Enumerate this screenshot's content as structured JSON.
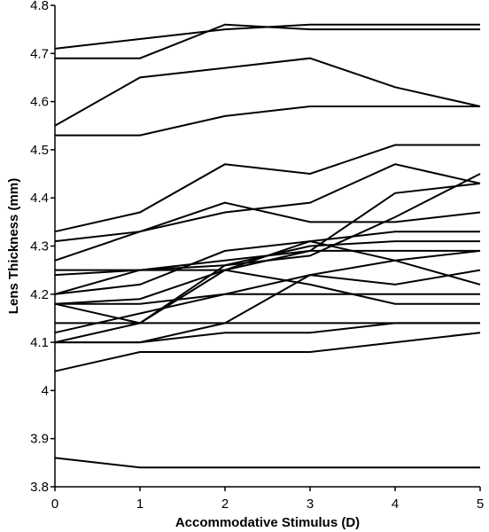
{
  "chart_data": {
    "type": "line",
    "xlabel": "Accommodative Stimulus (D)",
    "ylabel": "Lens Thickness (mm)",
    "x": [
      0,
      1,
      2,
      3,
      4,
      5
    ],
    "xlim": [
      0,
      5
    ],
    "ylim": [
      3.8,
      4.8
    ],
    "xticks": [
      "0",
      "1",
      "2",
      "3",
      "4",
      "5"
    ],
    "yticks": [
      "3.8",
      "3.9",
      "4",
      "4.1",
      "4.2",
      "4.3",
      "4.4",
      "4.5",
      "4.6",
      "4.7",
      "4.8"
    ],
    "grid": false,
    "legend": "none",
    "line_color": "#000000",
    "series": [
      {
        "values": [
          4.71,
          4.73,
          4.75,
          4.76,
          4.76,
          4.76
        ]
      },
      {
        "values": [
          4.69,
          4.69,
          4.76,
          4.75,
          4.75,
          4.75
        ]
      },
      {
        "values": [
          4.55,
          4.65,
          4.67,
          4.69,
          4.63,
          4.59
        ]
      },
      {
        "values": [
          4.53,
          4.53,
          4.57,
          4.59,
          4.59,
          4.59
        ]
      },
      {
        "values": [
          4.33,
          4.37,
          4.47,
          4.45,
          4.51,
          4.51
        ]
      },
      {
        "values": [
          4.31,
          4.33,
          4.39,
          4.35,
          4.35,
          4.37
        ]
      },
      {
        "values": [
          4.27,
          4.33,
          4.37,
          4.39,
          4.47,
          4.43
        ]
      },
      {
        "values": [
          4.24,
          4.25,
          4.27,
          4.29,
          4.41,
          4.43
        ]
      },
      {
        "values": [
          4.25,
          4.25,
          4.25,
          4.31,
          4.33,
          4.33
        ]
      },
      {
        "values": [
          4.2,
          4.25,
          4.26,
          4.3,
          4.31,
          4.31
        ]
      },
      {
        "values": [
          4.18,
          4.19,
          4.25,
          4.29,
          4.29,
          4.29
        ]
      },
      {
        "values": [
          4.2,
          4.22,
          4.29,
          4.31,
          4.27,
          4.22
        ]
      },
      {
        "values": [
          4.18,
          4.14,
          4.26,
          4.28,
          4.36,
          4.45
        ]
      },
      {
        "values": [
          4.12,
          4.16,
          4.2,
          4.24,
          4.27,
          4.29
        ]
      },
      {
        "values": [
          4.1,
          4.1,
          4.14,
          4.24,
          4.22,
          4.25
        ]
      },
      {
        "values": [
          4.18,
          4.18,
          4.2,
          4.2,
          4.2,
          4.2
        ]
      },
      {
        "values": [
          4.1,
          4.14,
          4.25,
          4.22,
          4.18,
          4.18
        ]
      },
      {
        "values": [
          4.14,
          4.14,
          4.14,
          4.14,
          4.14,
          4.14
        ]
      },
      {
        "values": [
          4.1,
          4.1,
          4.12,
          4.12,
          4.14,
          4.14
        ]
      },
      {
        "values": [
          4.04,
          4.08,
          4.08,
          4.08,
          4.1,
          4.12
        ]
      },
      {
        "values": [
          3.86,
          3.84,
          3.84,
          3.84,
          3.84,
          3.84
        ]
      }
    ]
  }
}
